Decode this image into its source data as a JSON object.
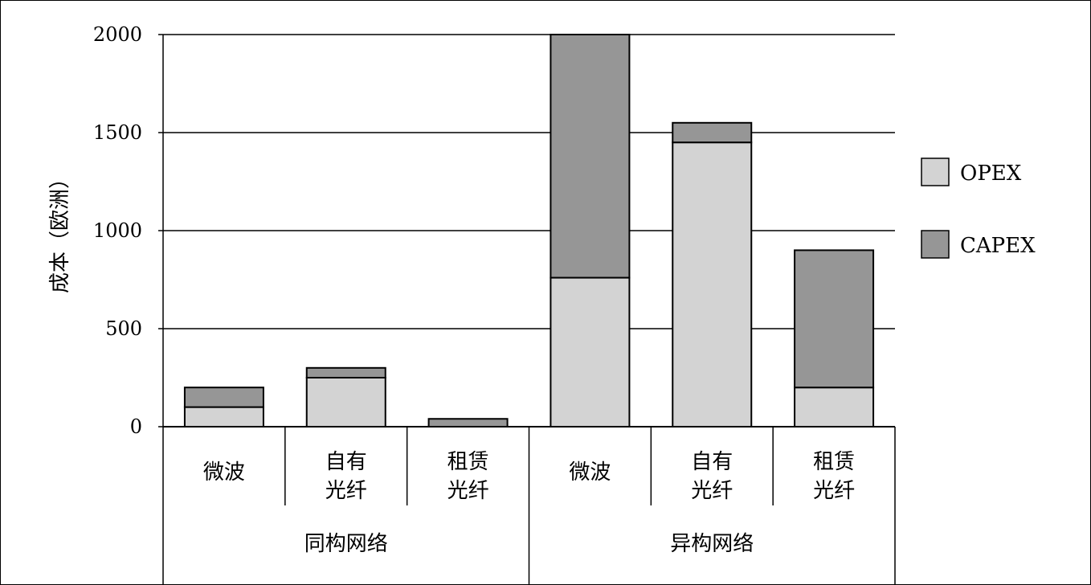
{
  "chart_data": {
    "type": "bar",
    "stacked": true,
    "ylabel": "成本（欧洲）",
    "ylim": [
      0,
      2000
    ],
    "yticks": [
      0,
      500,
      1000,
      1500,
      2000
    ],
    "grid": true,
    "legend_position": "right",
    "groups": [
      {
        "label": "同构网络",
        "categories": [
          [
            "微波"
          ],
          [
            "自有",
            "光纤"
          ],
          [
            "租赁",
            "光纤"
          ]
        ]
      },
      {
        "label": "异构网络",
        "categories": [
          [
            "微波"
          ],
          [
            "自有",
            "光纤"
          ],
          [
            "租赁",
            "光纤"
          ]
        ]
      }
    ],
    "series": [
      {
        "name": "OPEX",
        "color": "#d3d3d3",
        "values": [
          100,
          250,
          0,
          760,
          1450,
          200
        ]
      },
      {
        "name": "CAPEX",
        "color": "#969696",
        "values": [
          100,
          50,
          40,
          1240,
          100,
          700
        ]
      }
    ]
  }
}
